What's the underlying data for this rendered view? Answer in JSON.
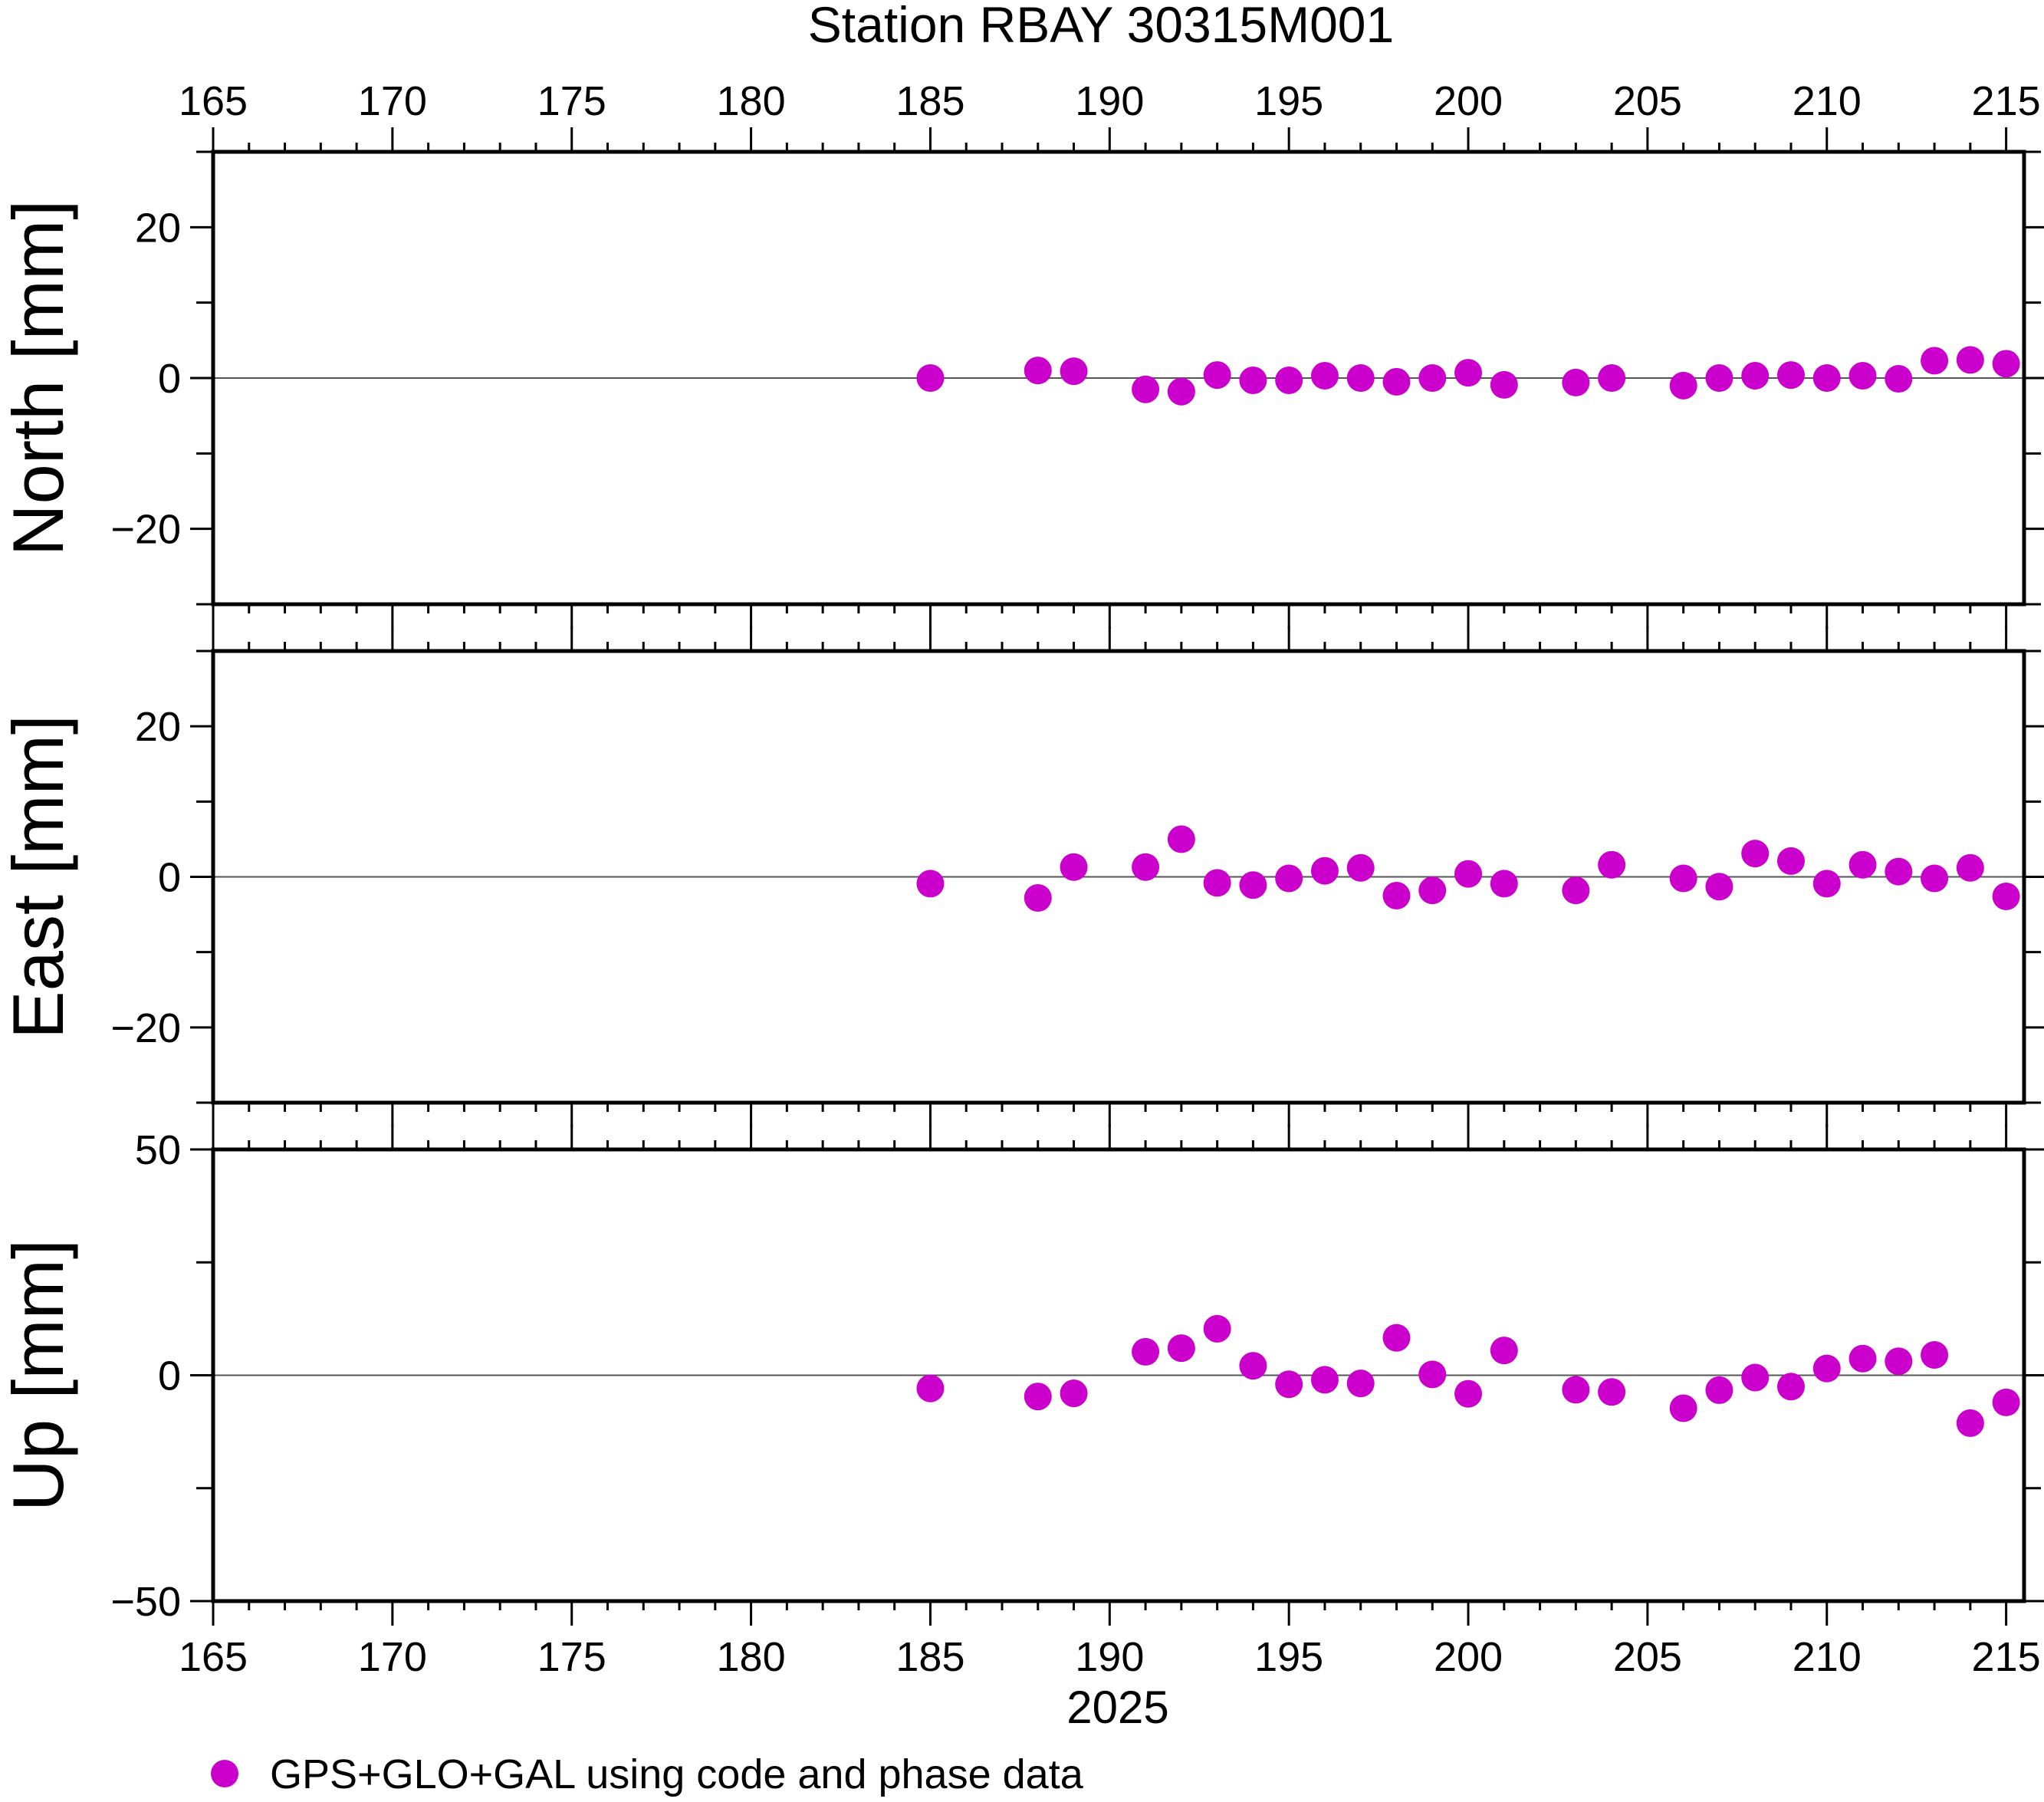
{
  "chart_data": {
    "type": "scatter",
    "title": "Station RBAY 30315M001",
    "xlabel": "2025",
    "x_ticks": [
      "165",
      "170",
      "175",
      "180",
      "185",
      "190",
      "195",
      "200",
      "205",
      "210",
      "215"
    ],
    "xlim": [
      165,
      215.5
    ],
    "marker_color": "#cc00cc",
    "legend": {
      "label": "GPS+GLO+GAL using code and phase data",
      "position": "bottom-left"
    },
    "panels": [
      {
        "ylabel": "North [mm]",
        "ylim": [
          -30,
          30
        ],
        "y_ticks": [
          {
            "value": 20,
            "label": "20"
          },
          {
            "value": 0,
            "label": "0"
          },
          {
            "value": -20,
            "label": "−20"
          }
        ],
        "x": [
          185,
          188,
          189,
          191,
          192,
          193,
          194,
          195,
          196,
          197,
          198,
          199,
          200,
          201,
          203,
          204,
          206,
          207,
          208,
          209,
          210,
          211,
          212,
          213,
          214,
          215
        ],
        "y": [
          0.0,
          1.0,
          0.9,
          -1.5,
          -1.8,
          0.4,
          -0.3,
          -0.3,
          0.3,
          0.0,
          -0.5,
          0.0,
          0.7,
          -0.9,
          -0.6,
          0.0,
          -1.0,
          0.0,
          0.3,
          0.4,
          0.0,
          0.3,
          -0.1,
          2.3,
          2.4,
          1.9
        ]
      },
      {
        "ylabel": "East [mm]",
        "ylim": [
          -30,
          30
        ],
        "y_ticks": [
          {
            "value": 20,
            "label": "20"
          },
          {
            "value": 0,
            "label": "0"
          },
          {
            "value": -20,
            "label": "−20"
          }
        ],
        "x": [
          185,
          188,
          189,
          191,
          192,
          193,
          194,
          195,
          196,
          197,
          198,
          199,
          200,
          201,
          203,
          204,
          206,
          207,
          208,
          209,
          210,
          211,
          212,
          213,
          214,
          215
        ],
        "y": [
          -0.9,
          -2.8,
          1.3,
          1.3,
          5.0,
          -0.8,
          -1.1,
          -0.2,
          0.8,
          1.2,
          -2.5,
          -1.8,
          0.4,
          -0.9,
          -1.8,
          1.6,
          -0.2,
          -1.3,
          3.1,
          2.1,
          -0.9,
          1.6,
          0.7,
          -0.2,
          1.2,
          -2.6
        ]
      },
      {
        "ylabel": "Up [mm]",
        "ylim": [
          -50,
          50
        ],
        "y_ticks": [
          {
            "value": 50,
            "label": "50"
          },
          {
            "value": 0,
            "label": "0"
          },
          {
            "value": -50,
            "label": "−50"
          }
        ],
        "x": [
          185,
          188,
          189,
          191,
          192,
          193,
          194,
          195,
          196,
          197,
          198,
          199,
          200,
          201,
          203,
          204,
          206,
          207,
          208,
          209,
          210,
          211,
          212,
          213,
          214,
          215
        ],
        "y": [
          -2.9,
          -4.7,
          -4.0,
          5.2,
          6.0,
          10.3,
          2.1,
          -2.0,
          -1.0,
          -1.8,
          8.3,
          0.2,
          -4.1,
          5.5,
          -3.2,
          -3.7,
          -7.3,
          -3.3,
          -0.5,
          -2.5,
          1.5,
          3.7,
          3.1,
          4.5,
          -10.6,
          -6.0
        ]
      }
    ]
  }
}
